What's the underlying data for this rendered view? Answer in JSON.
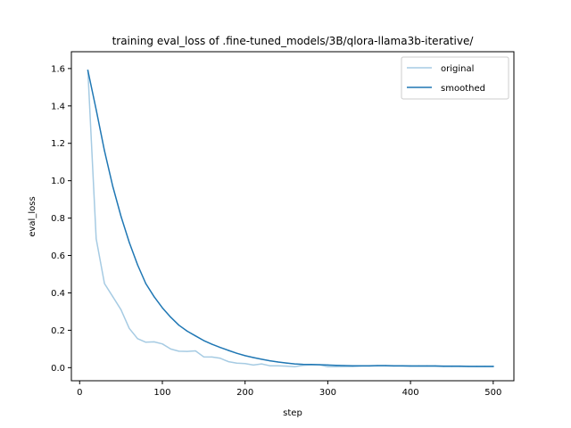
{
  "chart_data": {
    "type": "line",
    "title": "training eval_loss of .fine-tuned_models/3B/qlora-llama3b-iterative/",
    "xlabel": "step",
    "ylabel": "eval_loss",
    "xlim": [
      -10,
      525
    ],
    "ylim": [
      -0.07,
      1.69
    ],
    "xticks": [
      0,
      100,
      200,
      300,
      400,
      500
    ],
    "yticks": [
      0.0,
      0.2,
      0.4,
      0.6,
      0.8,
      1.0,
      1.2,
      1.4,
      1.6
    ],
    "grid": false,
    "legend": "top-right",
    "series": [
      {
        "name": "original",
        "color": "#a6cbe3",
        "x": [
          10,
          20,
          30,
          40,
          50,
          60,
          70,
          80,
          90,
          100,
          110,
          120,
          130,
          140,
          150,
          160,
          170,
          180,
          190,
          200,
          210,
          220,
          230,
          240,
          250,
          260,
          270,
          280,
          290,
          300,
          310,
          320,
          330,
          340,
          350,
          360,
          370,
          380,
          390,
          400,
          410,
          420,
          430,
          440,
          450,
          460,
          470,
          480,
          490,
          500
        ],
        "y": [
          1.59,
          0.69,
          0.45,
          0.38,
          0.31,
          0.21,
          0.155,
          0.136,
          0.138,
          0.127,
          0.1,
          0.088,
          0.087,
          0.09,
          0.058,
          0.057,
          0.05,
          0.032,
          0.024,
          0.022,
          0.014,
          0.02,
          0.01,
          0.01,
          0.008,
          0.005,
          0.012,
          0.015,
          0.015,
          0.005,
          0.005,
          0.006,
          0.006,
          0.008,
          0.008,
          0.01,
          0.009,
          0.008,
          0.008,
          0.007,
          0.007,
          0.007,
          0.007,
          0.006,
          0.006,
          0.006,
          0.006,
          0.005,
          0.005,
          0.005
        ]
      },
      {
        "name": "smoothed",
        "color": "#1f77b4",
        "x": [
          10,
          20,
          30,
          40,
          50,
          60,
          70,
          80,
          90,
          100,
          110,
          120,
          130,
          140,
          150,
          160,
          170,
          180,
          190,
          200,
          210,
          220,
          230,
          240,
          250,
          260,
          270,
          280,
          290,
          300,
          310,
          320,
          330,
          340,
          350,
          360,
          370,
          380,
          390,
          400,
          410,
          420,
          430,
          440,
          450,
          460,
          470,
          480,
          490,
          500
        ],
        "y": [
          1.59,
          1.38,
          1.16,
          0.97,
          0.81,
          0.67,
          0.55,
          0.45,
          0.38,
          0.32,
          0.27,
          0.227,
          0.195,
          0.17,
          0.145,
          0.125,
          0.108,
          0.092,
          0.077,
          0.064,
          0.054,
          0.045,
          0.037,
          0.03,
          0.025,
          0.02,
          0.018,
          0.017,
          0.016,
          0.014,
          0.012,
          0.011,
          0.01,
          0.01,
          0.01,
          0.011,
          0.011,
          0.01,
          0.01,
          0.009,
          0.009,
          0.009,
          0.009,
          0.008,
          0.008,
          0.008,
          0.007,
          0.007,
          0.007,
          0.007
        ]
      }
    ]
  }
}
